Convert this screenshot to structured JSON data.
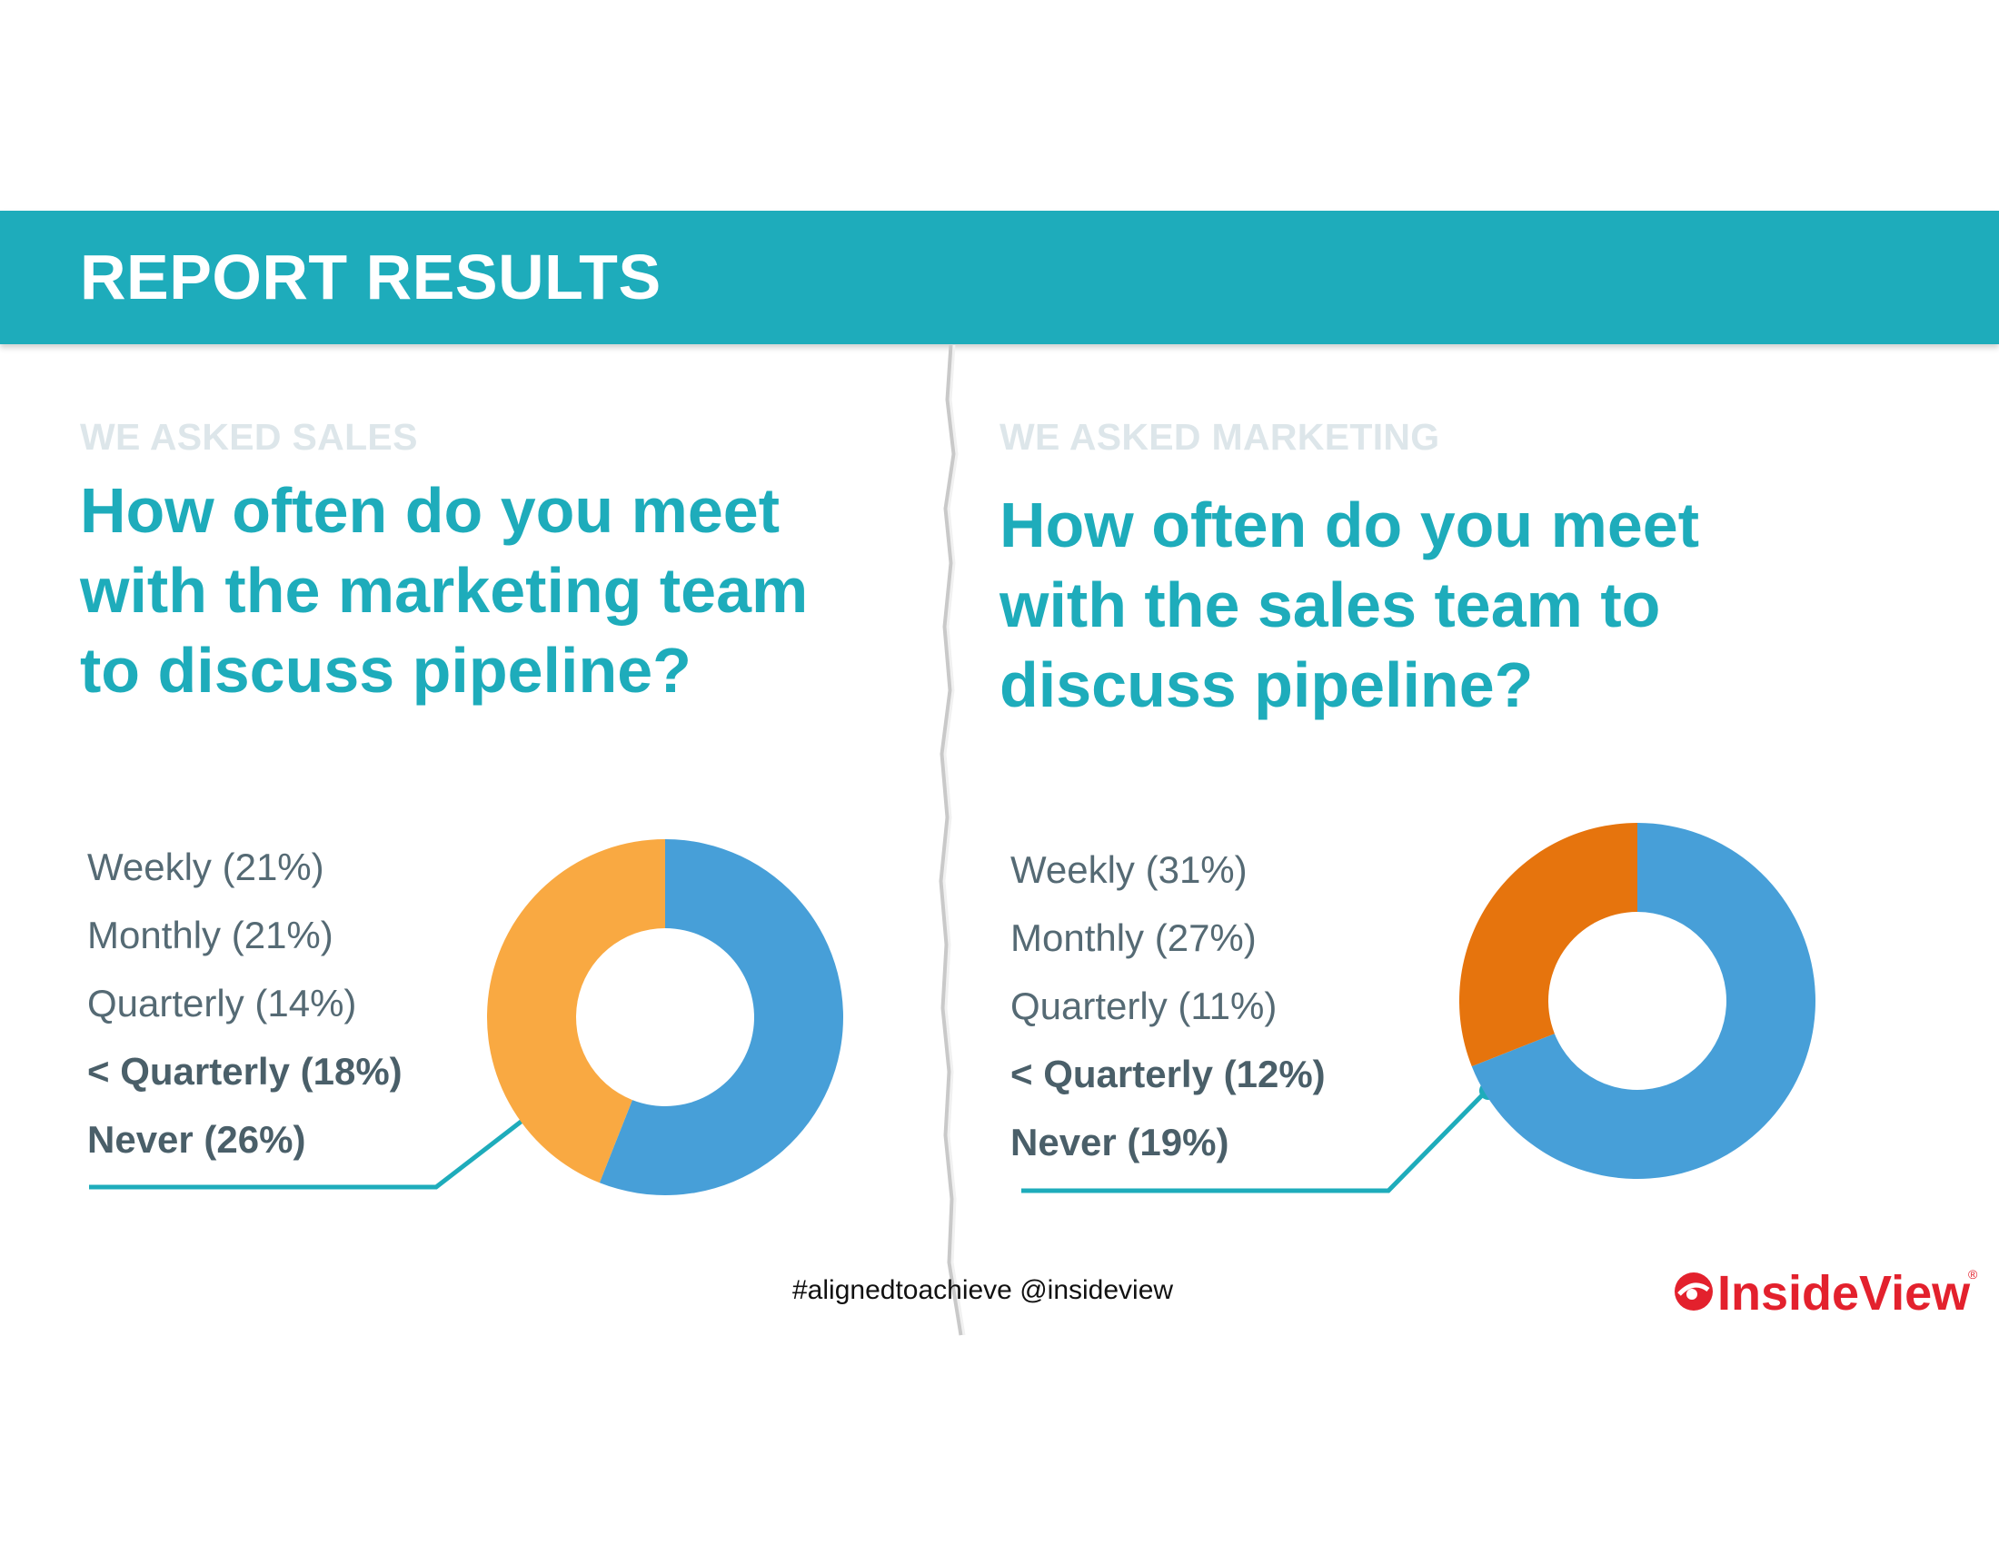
{
  "header": {
    "title": "REPORT RESULTS"
  },
  "colors": {
    "teal": "#1eacbb",
    "blue": "#479fd8",
    "light_orange": "#f9a942",
    "dark_orange": "#e6740d",
    "logo_red": "#e3212d"
  },
  "panels": [
    {
      "kicker": "WE ASKED SALES",
      "question_lines": [
        "How often do you meet",
        "with the marketing team",
        "to discuss pipeline?"
      ],
      "legend": [
        {
          "label": "Weekly (21%)",
          "bold": false
        },
        {
          "label": "Monthly (21%)",
          "bold": false
        },
        {
          "label": "Quarterly (14%)",
          "bold": false
        },
        {
          "label": "< Quarterly (18%)",
          "bold": true
        },
        {
          "label": "Never (26%)",
          "bold": true
        }
      ]
    },
    {
      "kicker": "WE ASKED MARKETING",
      "question_lines": [
        "How often do you meet",
        "with the sales team to",
        "discuss pipeline?"
      ],
      "legend": [
        {
          "label": "Weekly (31%)",
          "bold": false
        },
        {
          "label": "Monthly (27%)",
          "bold": false
        },
        {
          "label": "Quarterly (11%)",
          "bold": false
        },
        {
          "label": "< Quarterly (12%)",
          "bold": true
        },
        {
          "label": "Never (19%)",
          "bold": true
        }
      ]
    }
  ],
  "chart_data": [
    {
      "type": "pie",
      "categories": [
        "Weekly",
        "Monthly",
        "Quarterly",
        "< Quarterly",
        "Never"
      ],
      "values": [
        21,
        21,
        14,
        18,
        26
      ],
      "segments": [
        {
          "group": "Weekly + Monthly + Quarterly",
          "value": 56,
          "color": "#479fd8"
        },
        {
          "group": "< Quarterly + Never",
          "value": 44,
          "color": "#f9a942"
        }
      ],
      "donut": true
    },
    {
      "type": "pie",
      "categories": [
        "Weekly",
        "Monthly",
        "Quarterly",
        "< Quarterly",
        "Never"
      ],
      "values": [
        31,
        27,
        11,
        12,
        19
      ],
      "segments": [
        {
          "group": "Weekly + Monthly + Quarterly",
          "value": 69,
          "color": "#479fd8"
        },
        {
          "group": "< Quarterly + Never",
          "value": 31,
          "color": "#e6740d"
        }
      ],
      "donut": true
    }
  ],
  "footer": {
    "hashtag": "#alignedtoachieve @insideview"
  },
  "logo": {
    "text": "InsideView",
    "mark": "®"
  }
}
